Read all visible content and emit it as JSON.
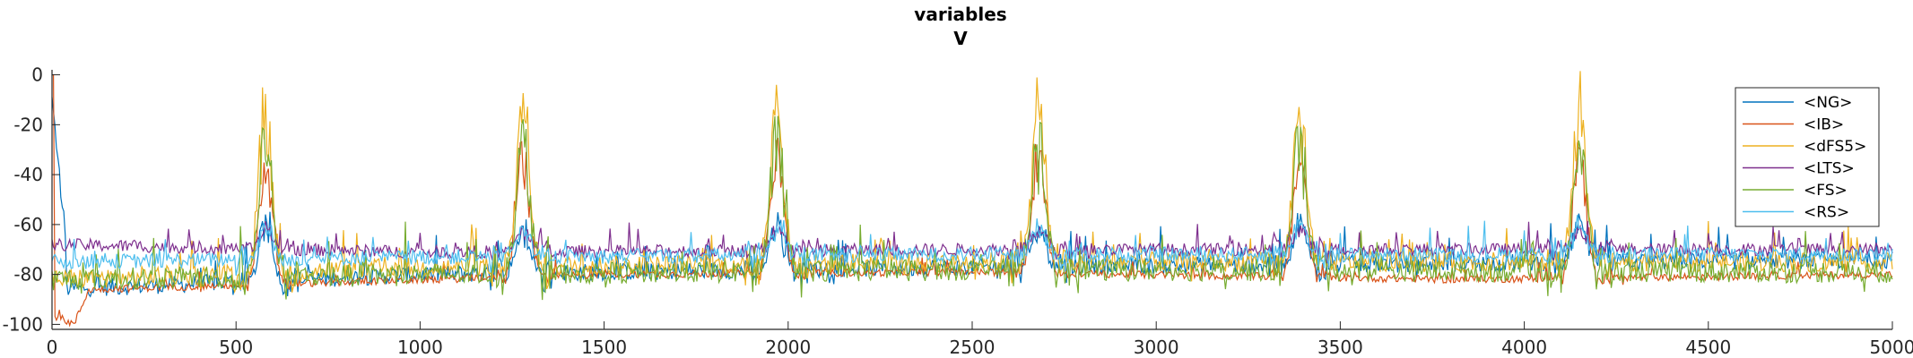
{
  "chart_data": {
    "type": "line",
    "title": "variables",
    "subtitle": "V",
    "xlabel": "",
    "ylabel": "",
    "xlim": [
      0,
      5000
    ],
    "ylim": [
      -102,
      2
    ],
    "xticks": [
      0,
      500,
      1000,
      1500,
      2000,
      2500,
      3000,
      3500,
      4000,
      4500,
      5000
    ],
    "yticks": [
      0,
      -20,
      -40,
      -60,
      -80,
      -100
    ],
    "grid": false,
    "legend_position": "top-right",
    "bursts_x": [
      580,
      1280,
      1970,
      2680,
      3390,
      4150
    ],
    "series": [
      {
        "name": "<NG>",
        "color": "#0072BD",
        "baseline": [
          [
            0,
            -86
          ],
          [
            1000,
            -80
          ],
          [
            2500,
            -77
          ],
          [
            5000,
            -74
          ]
        ],
        "burst_peak": -56,
        "noise": 7
      },
      {
        "name": "<IB>",
        "color": "#D95319",
        "baseline": [
          [
            0,
            -96
          ],
          [
            60,
            -100
          ],
          [
            100,
            -86
          ],
          [
            1500,
            -80
          ],
          [
            2500,
            -79
          ],
          [
            3800,
            -82
          ],
          [
            5000,
            -80
          ]
        ],
        "burst_peak": -20,
        "noise": 3
      },
      {
        "name": "<dFS5>",
        "color": "#EDB120",
        "baseline": [
          [
            0,
            -82
          ],
          [
            1000,
            -77
          ],
          [
            2500,
            -75
          ],
          [
            5000,
            -75
          ]
        ],
        "burst_peak": 0,
        "noise": 8
      },
      {
        "name": "<LTS>",
        "color": "#7E2F8E",
        "baseline": [
          [
            0,
            -68
          ],
          [
            1000,
            -71
          ],
          [
            2500,
            -70
          ],
          [
            5000,
            -70
          ]
        ],
        "burst_peak": -60,
        "noise": 5
      },
      {
        "name": "<FS>",
        "color": "#77AC30",
        "baseline": [
          [
            0,
            -82
          ],
          [
            1000,
            -80
          ],
          [
            2500,
            -78
          ],
          [
            5000,
            -79
          ]
        ],
        "burst_peak": -12,
        "noise": 9
      },
      {
        "name": "<RS>",
        "color": "#4DBEEE",
        "baseline": [
          [
            0,
            -75
          ],
          [
            1000,
            -73
          ],
          [
            2500,
            -72
          ],
          [
            5000,
            -72
          ]
        ],
        "burst_peak": -57,
        "noise": 6
      }
    ]
  }
}
